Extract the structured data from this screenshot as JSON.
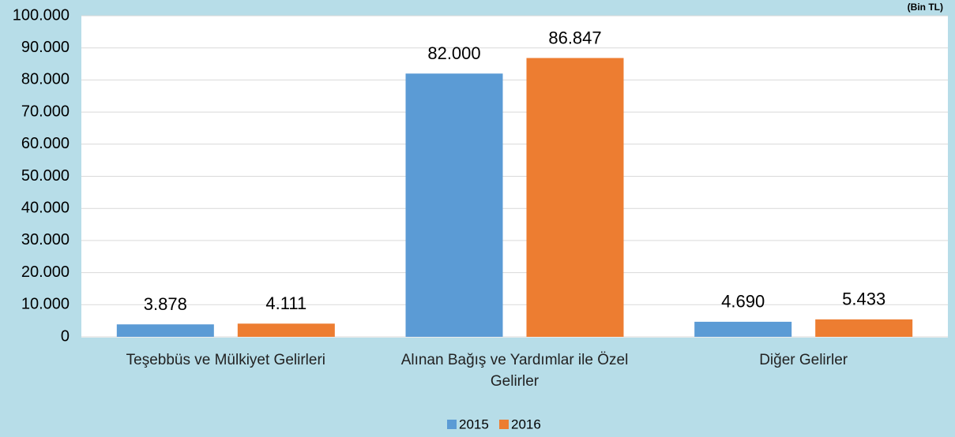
{
  "chart_data": {
    "type": "bar",
    "title": "(Bin TL)",
    "categories": [
      "Teşebbüs ve Mülkiyet  Gelirleri",
      "Alınan Bağış ve Yardımlar ile Özel Gelirler",
      "Diğer Gelirler"
    ],
    "series": [
      {
        "name": "2015",
        "color": "#5b9bd5",
        "values": [
          3878,
          82000,
          4690
        ],
        "value_labels": [
          "3.878",
          "82.000",
          "4.690"
        ]
      },
      {
        "name": "2016",
        "color": "#ed7d31",
        "values": [
          4111,
          86847,
          5433
        ],
        "value_labels": [
          "4.111",
          "86.847",
          "5.433"
        ]
      }
    ],
    "ylim": [
      0,
      100000
    ],
    "yticks": [
      0,
      {
        "value": 10000,
        "label": "10.000"
      },
      {
        "value": 20000,
        "label": "20.000"
      },
      {
        "value": 30000,
        "label": "30.000"
      },
      {
        "value": 40000,
        "label": "40.000"
      },
      {
        "value": 50000,
        "label": "50.000"
      },
      {
        "value": 60000,
        "label": "60.000"
      },
      {
        "value": 70000,
        "label": "70.000"
      },
      {
        "value": 80000,
        "label": "80.000"
      },
      {
        "value": 90000,
        "label": "90.000"
      },
      {
        "value": 100000,
        "label": "100.000"
      }
    ],
    "grid": true,
    "legend": "bottom"
  }
}
